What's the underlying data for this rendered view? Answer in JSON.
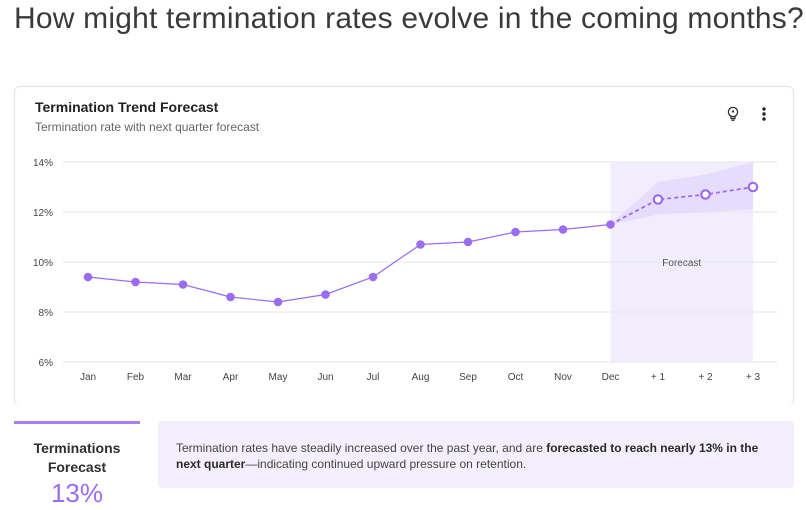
{
  "page": {
    "heading": "How might termination rates evolve in the coming months?"
  },
  "card": {
    "title": "Termination Trend Forecast",
    "subtitle": "Termination rate with next quarter forecast",
    "icons": [
      "lightbulb-icon",
      "more-vertical-icon"
    ]
  },
  "chart_data": {
    "type": "line",
    "categories": [
      "Jan",
      "Feb",
      "Mar",
      "Apr",
      "May",
      "Jun",
      "Jul",
      "Aug",
      "Sep",
      "Oct",
      "Nov",
      "Dec",
      "+ 1",
      "+ 2",
      "+ 3"
    ],
    "series": [
      {
        "values": [
          9.4,
          9.2,
          9.1,
          8.6,
          8.4,
          8.7,
          9.4,
          10.7,
          10.8,
          11.2,
          11.3,
          11.5,
          null,
          null,
          null
        ],
        "color": "#9b6cf0",
        "style": "solid"
      },
      {
        "values": [
          null,
          null,
          null,
          null,
          null,
          null,
          null,
          null,
          null,
          null,
          null,
          11.5,
          12.5,
          12.7,
          13.0
        ],
        "color": "#9b6cf0",
        "style": "dashed"
      }
    ],
    "confidence_band": {
      "categories": [
        "Dec",
        "+ 1",
        "+ 2",
        "+ 3"
      ],
      "lower": [
        11.5,
        11.9,
        12.0,
        12.1
      ],
      "upper": [
        11.5,
        13.2,
        13.5,
        14.0
      ],
      "color": "#e4d9fb"
    },
    "forecast_region_label": "Forecast",
    "forecast_region_color": "#f2edfd",
    "y_ticks": [
      "6%",
      "8%",
      "10%",
      "12%",
      "14%"
    ],
    "ylim": [
      6,
      14
    ],
    "grid": true,
    "xlabel": "",
    "ylabel": ""
  },
  "kpi": {
    "label": "Terminations Forecast",
    "value": "13%",
    "accent_color": "#a97ff1"
  },
  "insight": {
    "text_before": "Termination rates have steadily increased over the past year, and are ",
    "text_bold": "forecasted to reach nearly 13% in the next quarter",
    "text_after": "—indicating continued upward pressure on retention."
  }
}
